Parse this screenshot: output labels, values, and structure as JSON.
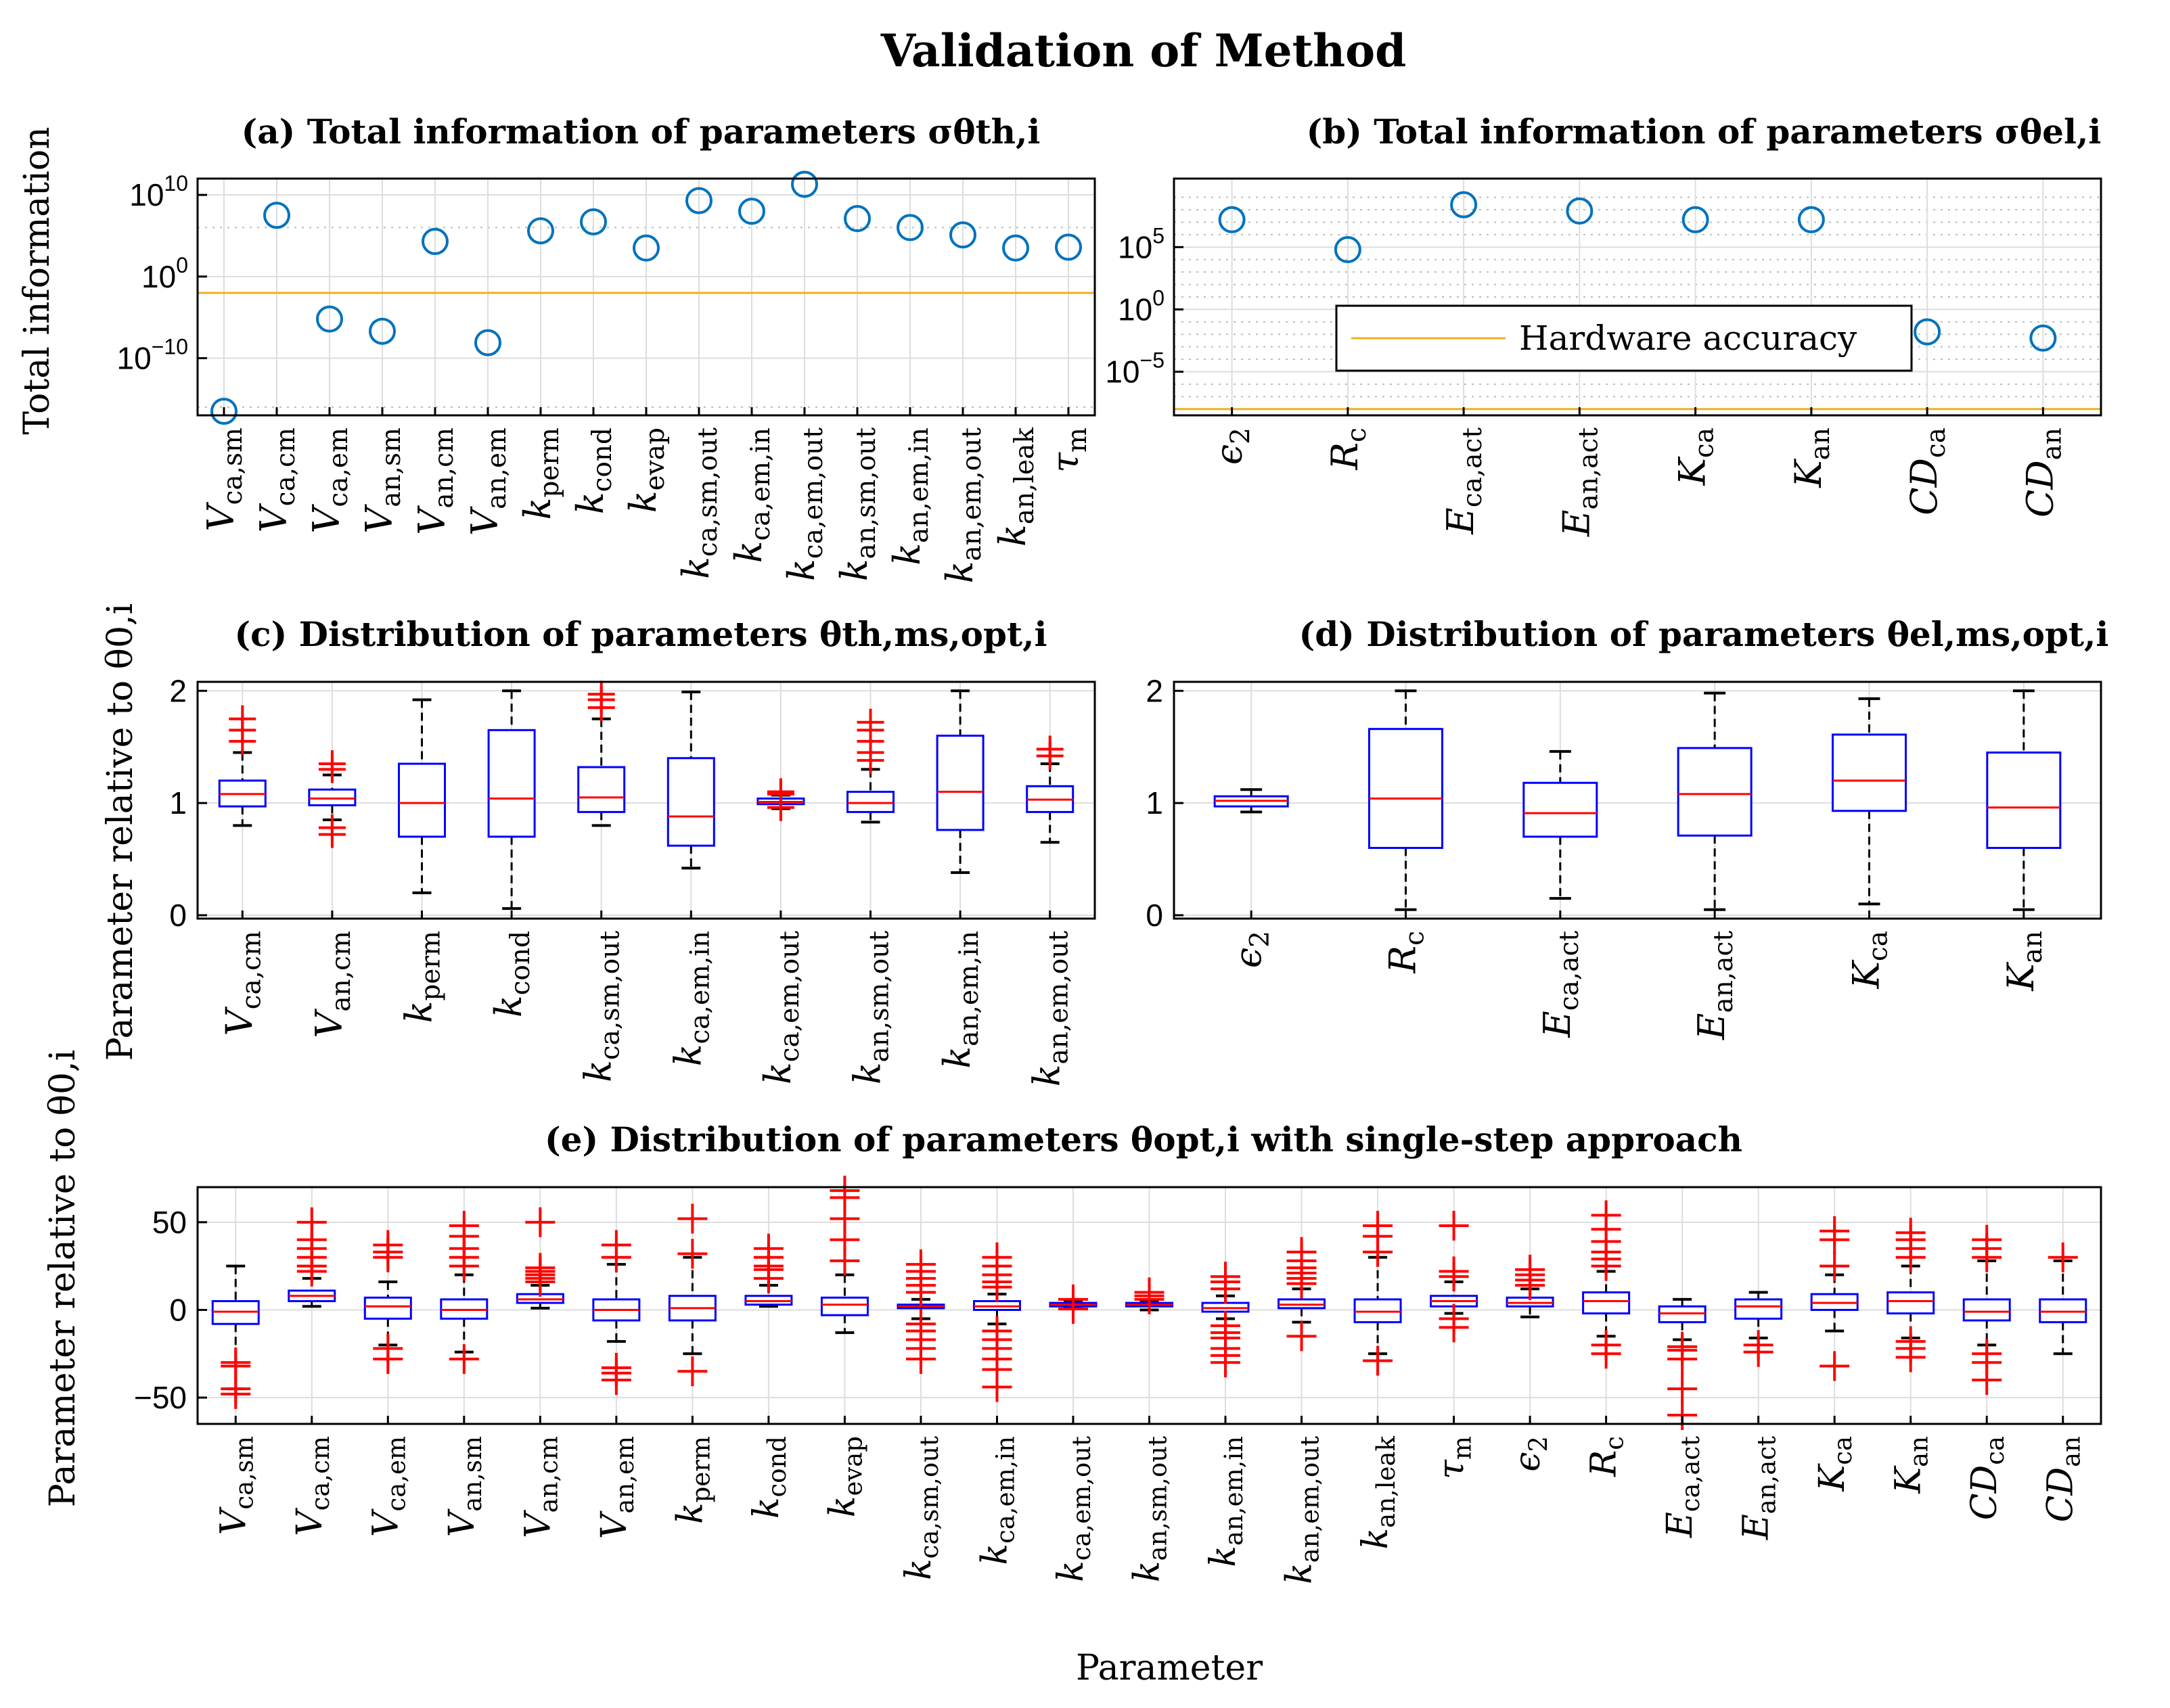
{
  "figure_title": "Validation of Method",
  "colors": {
    "marker": "#0072BD",
    "box": "#0000FF",
    "median": "#FF0000",
    "outlier": "#FF0000",
    "whisker": "#000000",
    "hardware_line": "#EDB120",
    "grid": "#DDDDDD"
  },
  "chart_data": [
    {
      "id": "a",
      "type": "scatter",
      "log_scale": true,
      "title": "(a) Total information of parameters σθth,i",
      "ylabel": "Total information",
      "xlabel": "",
      "ylim_exp": [
        -17,
        12
      ],
      "yticks_exp": [
        -10,
        0,
        10
      ],
      "minor_grid_exp": [
        -16,
        6
      ],
      "hardware_accuracy_exp": -2,
      "categories": [
        "V_ca,sm",
        "V_ca,cm",
        "V_ca,em",
        "V_an,sm",
        "V_an,cm",
        "V_an,em",
        "k_perm",
        "k_cond",
        "k_evap",
        "k_ca,sm,out",
        "k_ca,em,in",
        "k_ca,em,out",
        "k_an,sm,out",
        "k_an,em,in",
        "k_an,em,out",
        "k_an,leak",
        "τ_m"
      ],
      "values_log10": [
        -16.5,
        7.5,
        -5.2,
        -6.7,
        4.3,
        -8.1,
        5.6,
        6.7,
        3.5,
        9.3,
        8.0,
        11.3,
        7.1,
        6.0,
        5.1,
        3.5,
        3.6
      ]
    },
    {
      "id": "b",
      "type": "scatter",
      "log_scale": true,
      "title": "(b) Total information of parameters σθel,i",
      "ylabel": "",
      "xlabel": "",
      "ylim_exp": [
        -8.5,
        10.5
      ],
      "yticks_exp": [
        -5,
        0,
        5
      ],
      "minor_grid_exp": [
        -7,
        -6,
        -4,
        -3,
        -2,
        -1,
        1,
        2,
        3,
        4,
        6,
        7,
        8,
        9
      ],
      "hardware_accuracy_exp": -8.0,
      "legend": "Hardware accuracy",
      "categories": [
        "ϵ_2",
        "R_c",
        "E_ca,act",
        "E_an,act",
        "K_ca",
        "K_an",
        "CD_ca",
        "CD_an"
      ],
      "values_log10": [
        7.2,
        4.8,
        8.4,
        7.9,
        7.2,
        7.2,
        -1.8,
        -2.3
      ]
    },
    {
      "id": "c",
      "type": "boxplot",
      "title": "(c) Distribution of parameters θth,ms,opt,i",
      "ylabel": "Parameter relative to θ0,i",
      "xlabel": "",
      "ylim": [
        -0.03,
        2.08
      ],
      "yticks": [
        0,
        1,
        2
      ],
      "categories": [
        "V_ca,cm",
        "V_an,cm",
        "k_perm",
        "k_cond",
        "k_ca,sm,out",
        "k_ca,em,in",
        "k_ca,em,out",
        "k_an,sm,out",
        "k_an,em,in",
        "k_an,em,out"
      ],
      "series": [
        {
          "wmin": 0.8,
          "q1": 0.97,
          "median": 1.08,
          "q3": 1.2,
          "wmax": 1.45,
          "outliers": [
            1.55,
            1.65,
            1.75
          ]
        },
        {
          "wmin": 0.85,
          "q1": 0.98,
          "median": 1.04,
          "q3": 1.12,
          "wmax": 1.25,
          "outliers": [
            0.72,
            0.78,
            1.3,
            1.35
          ]
        },
        {
          "wmin": 0.2,
          "q1": 0.7,
          "median": 1.0,
          "q3": 1.35,
          "wmax": 1.92,
          "outliers": []
        },
        {
          "wmin": 0.06,
          "q1": 0.7,
          "median": 1.04,
          "q3": 1.65,
          "wmax": 2.0,
          "outliers": []
        },
        {
          "wmin": 0.8,
          "q1": 0.92,
          "median": 1.05,
          "q3": 1.32,
          "wmax": 1.75,
          "outliers": [
            1.85,
            1.92,
            1.97
          ]
        },
        {
          "wmin": 0.42,
          "q1": 0.62,
          "median": 0.88,
          "q3": 1.4,
          "wmax": 1.99,
          "outliers": []
        },
        {
          "wmin": 0.95,
          "q1": 0.99,
          "median": 1.01,
          "q3": 1.04,
          "wmax": 1.07,
          "outliers": [
            0.96,
            1.08,
            1.1
          ]
        },
        {
          "wmin": 0.83,
          "q1": 0.92,
          "median": 1.0,
          "q3": 1.1,
          "wmax": 1.3,
          "outliers": [
            1.38,
            1.45,
            1.55,
            1.65,
            1.72
          ]
        },
        {
          "wmin": 0.38,
          "q1": 0.76,
          "median": 1.1,
          "q3": 1.6,
          "wmax": 2.0,
          "outliers": []
        },
        {
          "wmin": 0.65,
          "q1": 0.92,
          "median": 1.03,
          "q3": 1.15,
          "wmax": 1.35,
          "outliers": [
            1.42,
            1.48
          ]
        }
      ]
    },
    {
      "id": "d",
      "type": "boxplot",
      "title": "(d) Distribution of parameters θel,ms,opt,i",
      "ylabel": "",
      "xlabel": "",
      "ylim": [
        -0.03,
        2.08
      ],
      "yticks": [
        0,
        1,
        2
      ],
      "categories": [
        "ϵ_2",
        "R_c",
        "E_ca,act",
        "E_an,act",
        "K_ca",
        "K_an"
      ],
      "series": [
        {
          "wmin": 0.92,
          "q1": 0.97,
          "median": 1.02,
          "q3": 1.06,
          "wmax": 1.12,
          "outliers": []
        },
        {
          "wmin": 0.05,
          "q1": 0.6,
          "median": 1.04,
          "q3": 1.66,
          "wmax": 2.0,
          "outliers": []
        },
        {
          "wmin": 0.15,
          "q1": 0.7,
          "median": 0.91,
          "q3": 1.18,
          "wmax": 1.46,
          "outliers": []
        },
        {
          "wmin": 0.05,
          "q1": 0.71,
          "median": 1.08,
          "q3": 1.49,
          "wmax": 1.98,
          "outliers": []
        },
        {
          "wmin": 0.1,
          "q1": 0.93,
          "median": 1.2,
          "q3": 1.61,
          "wmax": 1.93,
          "outliers": []
        },
        {
          "wmin": 0.05,
          "q1": 0.6,
          "median": 0.96,
          "q3": 1.45,
          "wmax": 2.0,
          "outliers": []
        }
      ]
    },
    {
      "id": "e",
      "type": "boxplot",
      "title": "(e) Distribution of parameters θopt,i with single-step approach",
      "ylabel": "Parameter relative to θ0,i",
      "xlabel": "Parameter",
      "ylim": [
        -65,
        70
      ],
      "yticks": [
        -50,
        0,
        50
      ],
      "categories": [
        "V_ca,sm",
        "V_ca,cm",
        "V_ca,em",
        "V_an,sm",
        "V_an,cm",
        "V_an,em",
        "k_perm",
        "k_cond",
        "k_evap",
        "k_ca,sm,out",
        "k_ca,em,in",
        "k_ca,em,out",
        "k_an,sm,out",
        "k_an,em,in",
        "k_an,em,out",
        "k_an,leak",
        "τ_m",
        "ϵ_2",
        "R_c",
        "E_ca,act",
        "E_an,act",
        "K_ca",
        "K_an",
        "CD_ca",
        "CD_an"
      ],
      "series": [
        {
          "wmin": -45,
          "q1": -8,
          "median": -1,
          "q3": 5,
          "wmax": 25,
          "outliers": [
            -30,
            -32,
            -45,
            -48
          ]
        },
        {
          "wmin": 2,
          "q1": 5,
          "median": 8,
          "q3": 11,
          "wmax": 18,
          "outliers": [
            22,
            25,
            30,
            35,
            40,
            50
          ]
        },
        {
          "wmin": -20,
          "q1": -5,
          "median": 2,
          "q3": 7,
          "wmax": 16,
          "outliers": [
            -22,
            -28,
            30,
            33,
            37
          ]
        },
        {
          "wmin": -24,
          "q1": -5,
          "median": 0,
          "q3": 6,
          "wmax": 20,
          "outliers": [
            -28,
            25,
            30,
            35,
            42,
            48
          ]
        },
        {
          "wmin": 1,
          "q1": 4,
          "median": 6,
          "q3": 9,
          "wmax": 14,
          "outliers": [
            16,
            18,
            20,
            22,
            24,
            50
          ]
        },
        {
          "wmin": -18,
          "q1": -6,
          "median": 0,
          "q3": 6,
          "wmax": 26,
          "outliers": [
            -33,
            -36,
            -40,
            30,
            37
          ]
        },
        {
          "wmin": -25,
          "q1": -6,
          "median": 1,
          "q3": 8,
          "wmax": 30,
          "outliers": [
            -35,
            32,
            52
          ]
        },
        {
          "wmin": 2,
          "q1": 3,
          "median": 5,
          "q3": 8,
          "wmax": 14,
          "outliers": [
            18,
            23,
            25,
            30,
            35
          ]
        },
        {
          "wmin": -13,
          "q1": -3,
          "median": 3,
          "q3": 7,
          "wmax": 20,
          "outliers": [
            28,
            40,
            52,
            64,
            68
          ]
        },
        {
          "wmin": -5,
          "q1": 1,
          "median": 2,
          "q3": 3,
          "wmax": 6,
          "outliers": [
            -28,
            -22,
            -17,
            -12,
            -8,
            10,
            14,
            18,
            22,
            26
          ]
        },
        {
          "wmin": -8,
          "q1": 0,
          "median": 2,
          "q3": 5,
          "wmax": 9,
          "outliers": [
            -44,
            -34,
            -28,
            -22,
            -17,
            -12,
            13,
            16,
            20,
            25,
            30
          ]
        },
        {
          "wmin": 1,
          "q1": 2,
          "median": 3,
          "q3": 4,
          "wmax": 5,
          "outliers": [
            0.5,
            6
          ]
        },
        {
          "wmin": 0,
          "q1": 2,
          "median": 3,
          "q3": 4,
          "wmax": 5,
          "outliers": [
            6,
            8,
            10
          ]
        },
        {
          "wmin": -5,
          "q1": -1,
          "median": 1,
          "q3": 4,
          "wmax": 8,
          "outliers": [
            -30,
            -26,
            -22,
            -16,
            -13,
            -9,
            12,
            16,
            19
          ]
        },
        {
          "wmin": -7,
          "q1": 1,
          "median": 3,
          "q3": 6,
          "wmax": 12,
          "outliers": [
            -15,
            15,
            18,
            21,
            24,
            28,
            33
          ]
        },
        {
          "wmin": -25,
          "q1": -7,
          "median": -1,
          "q3": 6,
          "wmax": 30,
          "outliers": [
            -29,
            33,
            42,
            48
          ]
        },
        {
          "wmin": -2,
          "q1": 2,
          "median": 5,
          "q3": 8,
          "wmax": 16,
          "outliers": [
            -10,
            -5,
            19,
            22,
            48
          ]
        },
        {
          "wmin": -4,
          "q1": 2,
          "median": 4,
          "q3": 7,
          "wmax": 12,
          "outliers": [
            14,
            17,
            20,
            23
          ]
        },
        {
          "wmin": -15,
          "q1": -2,
          "median": 5,
          "q3": 10,
          "wmax": 22,
          "outliers": [
            -25,
            -20,
            25,
            29,
            33,
            39,
            46,
            54
          ]
        },
        {
          "wmin": -17,
          "q1": -7,
          "median": -2,
          "q3": 2,
          "wmax": 6,
          "outliers": [
            -21,
            -23,
            -28,
            -45,
            -60
          ]
        },
        {
          "wmin": -16,
          "q1": -5,
          "median": 2,
          "q3": 6,
          "wmax": 10,
          "outliers": [
            -20,
            -24
          ]
        },
        {
          "wmin": -12,
          "q1": 0,
          "median": 4,
          "q3": 9,
          "wmax": 20,
          "outliers": [
            -32,
            25,
            40,
            45
          ]
        },
        {
          "wmin": -16,
          "q1": -2,
          "median": 5,
          "q3": 10,
          "wmax": 25,
          "outliers": [
            -18,
            -22,
            -27,
            30,
            35,
            40,
            44
          ]
        },
        {
          "wmin": -20,
          "q1": -6,
          "median": -1,
          "q3": 6,
          "wmax": 28,
          "outliers": [
            -25,
            -30,
            -40,
            30,
            35,
            40
          ]
        },
        {
          "wmin": -25,
          "q1": -7,
          "median": -1,
          "q3": 6,
          "wmax": 28,
          "outliers": [
            30
          ]
        }
      ]
    }
  ]
}
